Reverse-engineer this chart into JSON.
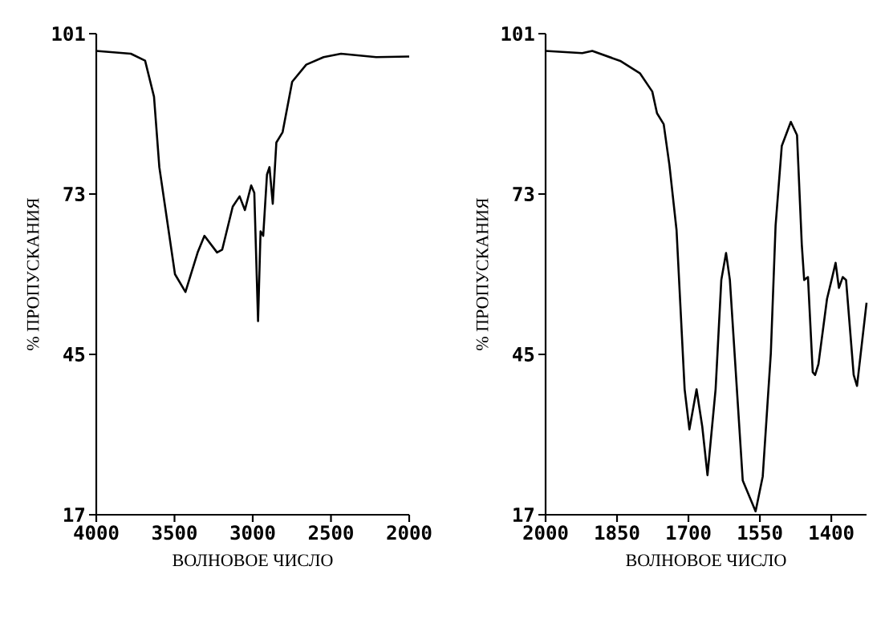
{
  "chart_data": [
    {
      "type": "line",
      "xlabel": "ВОЛНОВОЕ ЧИСЛО",
      "ylabel": "% ПРОПУСКАНИЯ",
      "color": "#000000",
      "x": [
        4000,
        3779,
        3688,
        3631,
        3597,
        3497,
        3430,
        3352,
        3309,
        3228,
        3195,
        3128,
        3084,
        3050,
        3010,
        2990,
        2966,
        2950,
        2933,
        2909,
        2893,
        2872,
        2849,
        2809,
        2748,
        2658,
        2547,
        2436,
        2211,
        2000
      ],
      "values": [
        98,
        97.5,
        96.3,
        90,
        77.7,
        59,
        55.9,
        62.8,
        65.7,
        62.8,
        63.3,
        70.8,
        72.6,
        70.2,
        74.5,
        73.2,
        50.8,
        66.5,
        65.7,
        76.4,
        77.7,
        71.3,
        82,
        83.8,
        92.6,
        95.6,
        96.9,
        97.5,
        96.9,
        97
      ],
      "xlim": [
        4000,
        2000
      ],
      "ylim": [
        17,
        101
      ],
      "xticks": [
        4000,
        3500,
        3000,
        2500,
        2000
      ],
      "yticks": [
        17,
        45,
        73,
        101
      ]
    },
    {
      "type": "line",
      "xlabel": "ВОЛНОВОЕ ЧИСЛО",
      "ylabel": "% ПРОПУСКАНИЯ",
      "color": "#000000",
      "x": [
        2000,
        1923,
        1902,
        1842,
        1802,
        1776,
        1766,
        1752,
        1740,
        1725,
        1708,
        1698,
        1683,
        1671,
        1660,
        1643,
        1631,
        1621,
        1613,
        1586,
        1559,
        1544,
        1527,
        1517,
        1504,
        1485,
        1472,
        1462,
        1457,
        1449,
        1439,
        1434,
        1427,
        1409,
        1398,
        1391,
        1384,
        1376,
        1369,
        1353,
        1346,
        1326
      ],
      "values": [
        98,
        97.6,
        98,
        96.2,
        94.1,
        90.9,
        87.1,
        85.2,
        78.1,
        66.7,
        38.9,
        31.9,
        38.9,
        32.4,
        23.9,
        38.9,
        58,
        62.7,
        58,
        23,
        17.6,
        23.7,
        45.2,
        67.5,
        81.4,
        85.6,
        83.3,
        64.2,
        58,
        58.5,
        41.9,
        41.4,
        43.3,
        54.7,
        58.5,
        61,
        56.6,
        58.5,
        58,
        41.4,
        39.5,
        54
      ],
      "xlim": [
        2000,
        1326
      ],
      "ylim": [
        17,
        101
      ],
      "xticks": [
        2000,
        1850,
        1700,
        1550,
        1400
      ],
      "yticks": [
        17,
        45,
        73,
        101
      ]
    }
  ]
}
